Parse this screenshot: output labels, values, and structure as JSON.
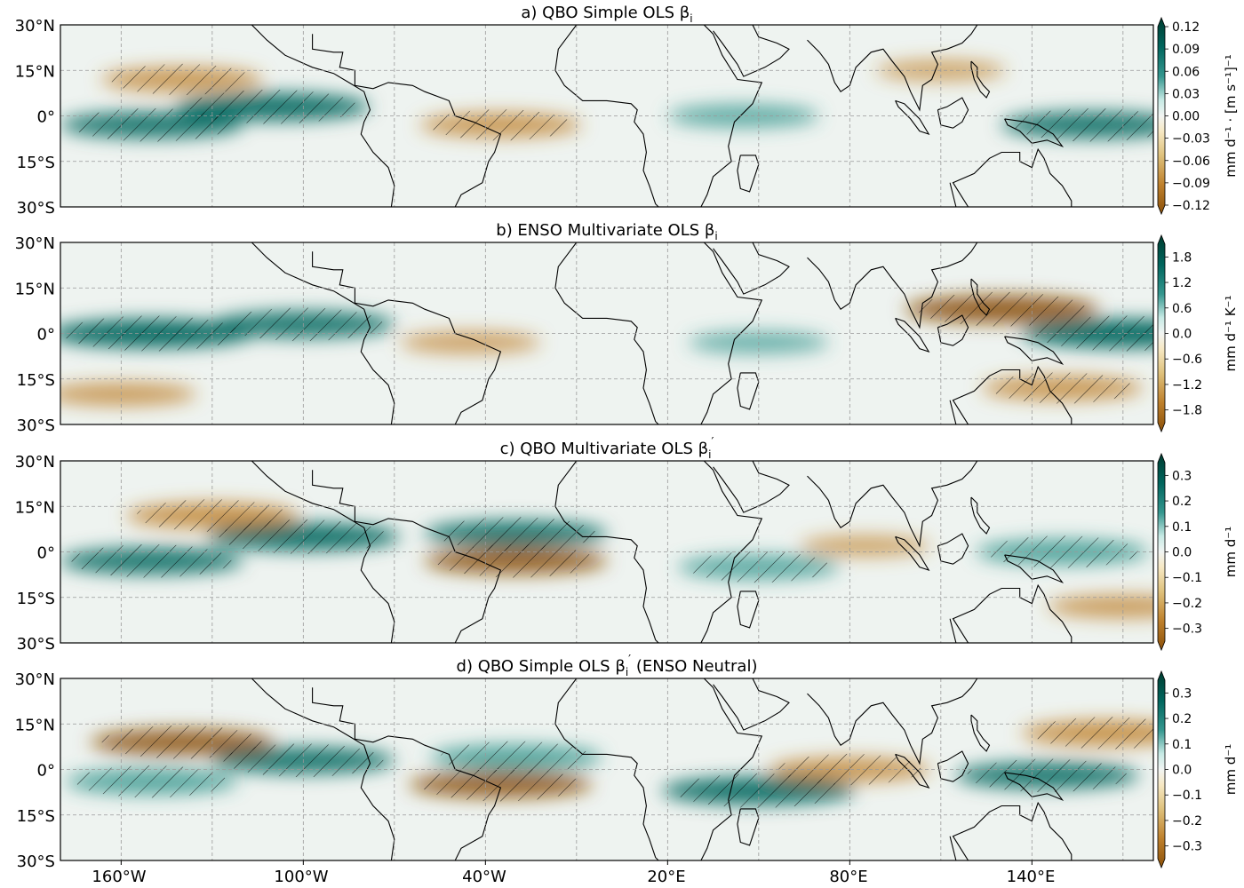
{
  "chart_data": [
    {
      "type": "heatmap",
      "panel": "a",
      "title": "a) QBO Simple OLS β",
      "title_sub": "i",
      "title_suffix": "",
      "xlabel": "",
      "ylabel": "",
      "xlim": [
        -180,
        180
      ],
      "ylim": [
        -30,
        30
      ],
      "ytick_labels": [
        "30°N",
        "15°N",
        "0°",
        "15°S",
        "30°S"
      ],
      "colorbar": {
        "label": "mm d⁻¹ · [m s⁻¹]⁻¹",
        "ticks": [
          0.12,
          0.09,
          0.06,
          0.03,
          0.0,
          -0.03,
          -0.06,
          -0.09,
          -0.12
        ],
        "tick_labels": [
          "0.12",
          "0.09",
          "0.06",
          "0.03",
          "0.00",
          "−0.03",
          "−0.06",
          "−0.09",
          "−0.12"
        ],
        "range": [
          -0.12,
          0.12
        ]
      },
      "features": [
        {
          "kind": "wet",
          "lon": -150,
          "lat": -3,
          "strength": 0.8
        },
        {
          "kind": "wet",
          "lon": -110,
          "lat": 3,
          "strength": 0.9
        },
        {
          "kind": "dry",
          "lon": -140,
          "lat": 12,
          "strength": 0.6
        },
        {
          "kind": "dry",
          "lon": -35,
          "lat": -3,
          "strength": 0.6
        },
        {
          "kind": "wet",
          "lon": 45,
          "lat": 0,
          "strength": 0.5
        },
        {
          "kind": "wet",
          "lon": 160,
          "lat": -3,
          "strength": 0.8
        },
        {
          "kind": "dry",
          "lon": 110,
          "lat": 15,
          "strength": 0.3
        }
      ]
    },
    {
      "type": "heatmap",
      "panel": "b",
      "title": "b) ENSO Multivariate OLS β",
      "title_sub": "i",
      "title_suffix": "",
      "xlabel": "",
      "ylabel": "",
      "xlim": [
        -180,
        180
      ],
      "ylim": [
        -30,
        30
      ],
      "ytick_labels": [
        "30°N",
        "15°N",
        "0°",
        "15°S",
        "30°S"
      ],
      "colorbar": {
        "label": "mm d⁻¹ K⁻¹",
        "ticks": [
          1.8,
          1.2,
          0.6,
          0.0,
          -0.6,
          -1.2,
          -1.8
        ],
        "tick_labels": [
          "1.8",
          "1.2",
          "0.6",
          "0.0",
          "−0.6",
          "−1.2",
          "−1.8"
        ],
        "range": [
          -2.1,
          2.1
        ]
      },
      "features": [
        {
          "kind": "wet",
          "lon": -150,
          "lat": 0,
          "strength": 1.0
        },
        {
          "kind": "wet",
          "lon": -100,
          "lat": 3,
          "strength": 0.8
        },
        {
          "kind": "dry",
          "lon": -160,
          "lat": -20,
          "strength": 0.5
        },
        {
          "kind": "dry",
          "lon": -45,
          "lat": -3,
          "strength": 0.4
        },
        {
          "kind": "wet",
          "lon": 50,
          "lat": -3,
          "strength": 0.4
        },
        {
          "kind": "dry",
          "lon": 130,
          "lat": 8,
          "strength": 0.9
        },
        {
          "kind": "wet",
          "lon": 170,
          "lat": 0,
          "strength": 1.0
        },
        {
          "kind": "dry",
          "lon": 150,
          "lat": -18,
          "strength": 0.6
        }
      ]
    },
    {
      "type": "heatmap",
      "panel": "c",
      "title": "c) QBO Multivariate OLS β",
      "title_sub": "i",
      "title_prime": true,
      "title_suffix": "",
      "xlabel": "",
      "ylabel": "",
      "xlim": [
        -180,
        180
      ],
      "ylim": [
        -30,
        30
      ],
      "ytick_labels": [
        "30°N",
        "15°N",
        "0°",
        "15°S",
        "30°S"
      ],
      "colorbar": {
        "label": "mm d⁻¹",
        "ticks": [
          0.3,
          0.2,
          0.1,
          0.0,
          -0.1,
          -0.2,
          -0.3
        ],
        "tick_labels": [
          "0.3",
          "0.2",
          "0.1",
          "0.0",
          "−0.1",
          "−0.2",
          "−0.3"
        ],
        "range": [
          -0.35,
          0.35
        ]
      },
      "features": [
        {
          "kind": "wet",
          "lon": -150,
          "lat": -3,
          "strength": 0.8
        },
        {
          "kind": "wet",
          "lon": -100,
          "lat": 5,
          "strength": 0.9
        },
        {
          "kind": "dry",
          "lon": -130,
          "lat": 12,
          "strength": 0.7
        },
        {
          "kind": "wet",
          "lon": -30,
          "lat": 6,
          "strength": 0.8
        },
        {
          "kind": "dry",
          "lon": -30,
          "lat": -3,
          "strength": 0.8
        },
        {
          "kind": "wet",
          "lon": 50,
          "lat": -5,
          "strength": 0.6
        },
        {
          "kind": "dry",
          "lon": 85,
          "lat": 2,
          "strength": 0.3
        },
        {
          "kind": "wet",
          "lon": 150,
          "lat": 0,
          "strength": 0.7
        },
        {
          "kind": "dry",
          "lon": 170,
          "lat": -18,
          "strength": 0.5
        }
      ]
    },
    {
      "type": "heatmap",
      "panel": "d",
      "title": "d) QBO Simple OLS β",
      "title_sub": "i",
      "title_prime": true,
      "title_suffix": "  (ENSO Neutral)",
      "xlabel": "",
      "ylabel": "",
      "xlim": [
        -180,
        180
      ],
      "ylim": [
        -30,
        30
      ],
      "ytick_labels": [
        "30°N",
        "15°N",
        "0°",
        "15°S",
        "30°S"
      ],
      "xtick_labels": [
        "160°W",
        "100°W",
        "40°W",
        "20°E",
        "80°E",
        "140°E"
      ],
      "colorbar": {
        "label": "mm d⁻¹",
        "ticks": [
          0.3,
          0.2,
          0.1,
          0.0,
          -0.1,
          -0.2,
          -0.3
        ],
        "tick_labels": [
          "0.3",
          "0.2",
          "0.1",
          "0.0",
          "−0.1",
          "−0.2",
          "−0.3"
        ],
        "range": [
          -0.35,
          0.35
        ]
      },
      "features": [
        {
          "kind": "dry",
          "lon": -140,
          "lat": 9,
          "strength": 0.8
        },
        {
          "kind": "wet",
          "lon": -150,
          "lat": -4,
          "strength": 0.7
        },
        {
          "kind": "wet",
          "lon": -100,
          "lat": 3,
          "strength": 0.8
        },
        {
          "kind": "wet",
          "lon": -30,
          "lat": 4,
          "strength": 0.7
        },
        {
          "kind": "dry",
          "lon": -35,
          "lat": -5,
          "strength": 0.8
        },
        {
          "kind": "wet",
          "lon": 50,
          "lat": -7,
          "strength": 0.9
        },
        {
          "kind": "dry",
          "lon": 80,
          "lat": 0,
          "strength": 0.6
        },
        {
          "kind": "wet",
          "lon": 145,
          "lat": -2,
          "strength": 0.8
        },
        {
          "kind": "dry",
          "lon": 165,
          "lat": 12,
          "strength": 0.7
        }
      ]
    }
  ]
}
